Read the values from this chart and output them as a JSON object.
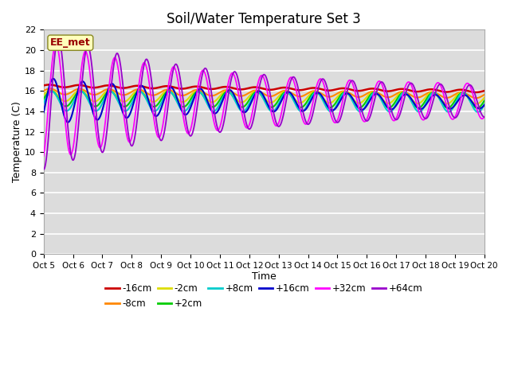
{
  "title": "Soil/Water Temperature Set 3",
  "xlabel": "Time",
  "ylabel": "Temperature (C)",
  "annotation": "EE_met",
  "ylim": [
    0,
    22
  ],
  "yticks": [
    0,
    2,
    4,
    6,
    8,
    10,
    12,
    14,
    16,
    18,
    20,
    22
  ],
  "xtick_labels": [
    "Oct 5",
    "Oct 6",
    "Oct 7",
    "Oct 8",
    "Oct 9",
    "Oct 10",
    "Oct 11",
    "Oct 12",
    "Oct 13",
    "Oct 14",
    "Oct 15",
    "Oct 16",
    "Oct 17",
    "Oct 18",
    "Oct 19",
    "Oct 20"
  ],
  "series_colors": [
    "#cc0000",
    "#ff8800",
    "#dddd00",
    "#00cc00",
    "#00cccc",
    "#0000cc",
    "#ff00ff",
    "#9900cc"
  ],
  "series_labels": [
    "-16cm",
    "-8cm",
    "-2cm",
    "+2cm",
    "+8cm",
    "+16cm",
    "+32cm",
    "+64cm"
  ],
  "plot_bg_color": "#dcdcdc",
  "grid_color": "#ffffff",
  "fig_bg_color": "#ffffff"
}
